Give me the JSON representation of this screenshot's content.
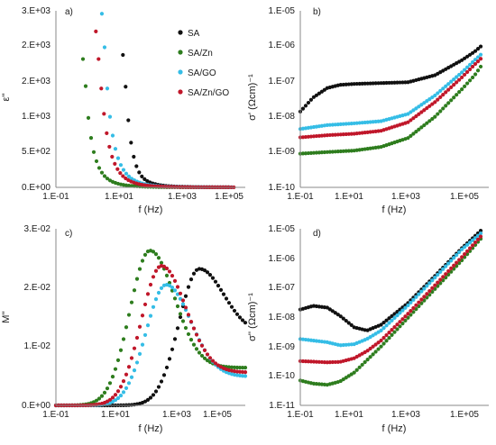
{
  "figure": {
    "series_colors": {
      "SA": "#111111",
      "SA/Zn": "#2e7d1e",
      "SA/GO": "#35bde6",
      "SA/Zn/GO": "#c0172a"
    }
  },
  "chart_data": [
    {
      "id": "a",
      "panel_label": "a)",
      "type": "scatter",
      "xscale": "log",
      "xlabel": "f (Hz)",
      "ylabel": "ε''",
      "xlim": [
        0.1,
        1000000
      ],
      "ylim": [
        0,
        3000
      ],
      "xticks": [
        "1.E-01",
        "1.E+01",
        "1.E+03",
        "1.E+05"
      ],
      "yticks": [
        "0.E+00",
        "5.E+02",
        "1.E+03",
        "2.E+03",
        "2.E+03",
        "3.E+03"
      ],
      "legend": [
        "SA",
        "SA/Zn",
        "SA/GO",
        "SA/Zn/GO"
      ],
      "legend_position": "top-right",
      "grid": false,
      "series": [
        {
          "name": "SA",
          "start_x": 30,
          "values": [
            2250,
            1710,
            1140,
            760,
            520,
            360,
            255,
            185,
            140,
            108,
            85,
            68,
            55,
            45,
            37,
            31,
            26,
            22,
            19,
            16,
            14,
            12,
            11,
            10,
            9,
            8,
            7,
            6,
            6,
            5,
            5,
            4,
            4,
            4,
            3,
            3,
            3,
            3,
            2,
            2
          ]
        },
        {
          "name": "SA/Zn",
          "start_x": 1,
          "values": [
            2180,
            1720,
            1180,
            840,
            600,
            445,
            330,
            250,
            192,
            150,
            118,
            94,
            76,
            62,
            51,
            42,
            35,
            29,
            25,
            21,
            18,
            15,
            13,
            11,
            10,
            9,
            8,
            7,
            6,
            5,
            5,
            4,
            4,
            3,
            3,
            3,
            2,
            2,
            2,
            2,
            2,
            2,
            2,
            2,
            1,
            1,
            1,
            1,
            1,
            1,
            1,
            1,
            1,
            1,
            1,
            1
          ]
        },
        {
          "name": "SA/GO",
          "start_x": 5,
          "values": [
            2950,
            2380,
            1680,
            1200,
            880,
            655,
            495,
            380,
            296,
            233,
            185,
            148,
            120,
            98,
            80,
            66,
            55,
            46,
            38,
            32,
            27,
            23,
            20,
            17,
            15,
            13,
            11,
            10,
            9,
            8,
            7,
            6,
            6,
            5,
            5,
            4,
            4,
            4,
            3,
            3,
            3,
            3,
            2,
            2,
            2,
            2,
            2,
            2,
            2
          ]
        },
        {
          "name": "SA/Zn/GO",
          "start_x": 3,
          "values": [
            2650,
            2180,
            1680,
            1250,
            920,
            690,
            520,
            400,
            310,
            243,
            192,
            153,
            123,
            100,
            82,
            67,
            56,
            46,
            39,
            33,
            28,
            24,
            20,
            17,
            15,
            13,
            11,
            10,
            9,
            8,
            7,
            6,
            5,
            5,
            4,
            4,
            3,
            3,
            3,
            3,
            2,
            2,
            2,
            2,
            2,
            2,
            2,
            2,
            2,
            2,
            1,
            1
          ]
        }
      ]
    },
    {
      "id": "b",
      "panel_label": "b)",
      "type": "scatter",
      "xscale": "log",
      "yscale": "log",
      "xlabel": "f (Hz)",
      "ylabel": "σ' (Ωcm)⁻¹",
      "xlim": [
        0.1,
        1000000
      ],
      "ylim": [
        1e-10,
        1e-05
      ],
      "xticks": [
        "1.E-01",
        "1.E+01",
        "1.E+03",
        "1.E+05"
      ],
      "yticks": [
        "1.E-10",
        "1.E-09",
        "1.E-08",
        "1.E-07",
        "1.E-06",
        "1.E-05"
      ],
      "grid": false,
      "series": [
        {
          "name": "SA",
          "points": [
            [
              0.1,
              1.4e-08
            ],
            [
              0.3,
              3.5e-08
            ],
            [
              1,
              6.5e-08
            ],
            [
              3,
              8e-08
            ],
            [
              10,
              8.5e-08
            ],
            [
              100,
              9e-08
            ],
            [
              1000,
              9.5e-08
            ],
            [
              10000,
              1.5e-07
            ],
            [
              100000,
              4e-07
            ],
            [
              300000,
              7e-07
            ],
            [
              600000,
              1.1e-06
            ]
          ]
        },
        {
          "name": "SA/Zn",
          "points": [
            [
              0.1,
              9e-10
            ],
            [
              1,
              1e-09
            ],
            [
              10,
              1.1e-09
            ],
            [
              100,
              1.4e-09
            ],
            [
              1000,
              2.5e-09
            ],
            [
              10000,
              1e-08
            ],
            [
              100000,
              6e-08
            ],
            [
              300000,
              1.5e-07
            ],
            [
              600000,
              3.2e-07
            ]
          ]
        },
        {
          "name": "SA/GO",
          "points": [
            [
              0.1,
              4.5e-09
            ],
            [
              1,
              5.8e-09
            ],
            [
              10,
              6.5e-09
            ],
            [
              100,
              7.5e-09
            ],
            [
              1000,
              1.2e-08
            ],
            [
              10000,
              4e-08
            ],
            [
              100000,
              1.8e-07
            ],
            [
              300000,
              4e-07
            ],
            [
              600000,
              6.5e-07
            ]
          ]
        },
        {
          "name": "SA/Zn/GO",
          "points": [
            [
              0.1,
              2.6e-09
            ],
            [
              1,
              3e-09
            ],
            [
              10,
              3.3e-09
            ],
            [
              100,
              4e-09
            ],
            [
              1000,
              7e-09
            ],
            [
              10000,
              2.6e-08
            ],
            [
              100000,
              1.3e-07
            ],
            [
              300000,
              3e-07
            ],
            [
              600000,
              5e-07
            ]
          ]
        }
      ]
    },
    {
      "id": "c",
      "panel_label": "c)",
      "type": "scatter",
      "xscale": "log",
      "xlabel": "f (Hz)",
      "ylabel": "M''",
      "xlim": [
        0.1,
        1000000
      ],
      "ylim": [
        0,
        0.03
      ],
      "xticks": [
        "1.E-01",
        "1.E+01",
        "1.E+03",
        "1.E+05"
      ],
      "yticks": [
        "0.E+00",
        "1.E-02",
        "2.E-02",
        "3.E-02"
      ],
      "grid": false,
      "series": [
        {
          "name": "SA",
          "peak_f": 20000,
          "peak": 0.0232,
          "tail": 0.0122
        },
        {
          "name": "SA/Zn",
          "peak_f": 300,
          "peak": 0.0263,
          "tail": 0.0064
        },
        {
          "name": "SA/GO",
          "peak_f": 1200,
          "peak": 0.0205,
          "tail": 0.0049
        },
        {
          "name": "SA/Zn/GO",
          "peak_f": 800,
          "peak": 0.0237,
          "tail": 0.0056
        }
      ]
    },
    {
      "id": "d",
      "panel_label": "d)",
      "type": "scatter",
      "xscale": "log",
      "yscale": "log",
      "xlabel": "f (Hz)",
      "ylabel": "σ'' (Ωcm)⁻¹",
      "xlim": [
        0.1,
        1000000
      ],
      "ylim": [
        1e-11,
        1e-05
      ],
      "xticks": [
        "1.E-01",
        "1.E+01",
        "1.E+03",
        "1.E+05"
      ],
      "yticks": [
        "1.E-11",
        "1.E-10",
        "1.E-09",
        "1.E-08",
        "1.E-07",
        "1.E-06",
        "1.E-05"
      ],
      "grid": false,
      "series": [
        {
          "name": "SA",
          "points": [
            [
              0.1,
              1.8e-08
            ],
            [
              0.3,
              2.4e-08
            ],
            [
              1,
              2.1e-08
            ],
            [
              3,
              1.1e-08
            ],
            [
              10,
              4.5e-09
            ],
            [
              30,
              3.5e-09
            ],
            [
              100,
              5.5e-09
            ],
            [
              1000,
              3e-08
            ],
            [
              10000,
              2.5e-07
            ],
            [
              100000,
              2.2e-06
            ],
            [
              600000,
              1e-05
            ]
          ]
        },
        {
          "name": "SA/Zn",
          "points": [
            [
              0.1,
              7e-11
            ],
            [
              0.3,
              5.5e-11
            ],
            [
              1,
              5e-11
            ],
            [
              3,
              6.5e-11
            ],
            [
              10,
              1.3e-10
            ],
            [
              100,
              1e-09
            ],
            [
              1000,
              9.5e-09
            ],
            [
              10000,
              9e-08
            ],
            [
              100000,
              8.5e-07
            ],
            [
              600000,
              5.5e-06
            ]
          ]
        },
        {
          "name": "SA/GO",
          "points": [
            [
              0.1,
              1.8e-09
            ],
            [
              1,
              1.4e-09
            ],
            [
              3,
              1.1e-09
            ],
            [
              10,
              1.2e-09
            ],
            [
              30,
              1.8e-09
            ],
            [
              100,
              3.5e-09
            ],
            [
              1000,
              2.5e-08
            ],
            [
              10000,
              2.2e-07
            ],
            [
              100000,
              2e-06
            ],
            [
              600000,
              8e-06
            ]
          ]
        },
        {
          "name": "SA/Zn/GO",
          "points": [
            [
              0.1,
              3.2e-10
            ],
            [
              1,
              2.9e-10
            ],
            [
              3,
              3e-10
            ],
            [
              10,
              4e-10
            ],
            [
              30,
              7e-10
            ],
            [
              100,
              1.6e-09
            ],
            [
              1000,
              1.3e-08
            ],
            [
              10000,
              1.2e-07
            ],
            [
              100000,
              1.1e-06
            ],
            [
              600000,
              6.5e-06
            ]
          ]
        }
      ]
    }
  ]
}
